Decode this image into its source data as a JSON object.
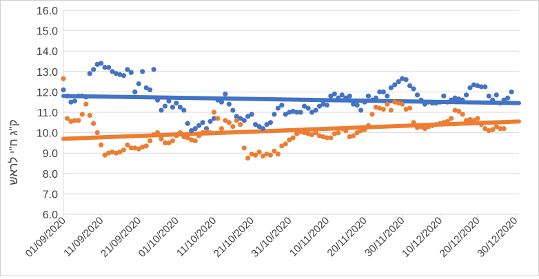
{
  "chart_data": {
    "type": "scatter",
    "title": "",
    "xlabel": "",
    "ylabel": "ק\"ג ח\"י לראש",
    "ylim": [
      6.0,
      16.0
    ],
    "y_ticks": [
      "16.0",
      "15.0",
      "14.0",
      "13.0",
      "12.0",
      "11.0",
      "10.0",
      "9.0",
      "8.0",
      "7.0",
      "6.0"
    ],
    "x_ticks": [
      "01/09/2020",
      "11/09/2020",
      "21/09/2020",
      "01/10/2020",
      "11/10/2020",
      "21/10/2020",
      "31/10/2020",
      "10/11/2020",
      "20/11/2020",
      "30/11/2020",
      "10/12/2020",
      "20/12/2020",
      "30/12/2020"
    ],
    "xlim": [
      "2020-09-01",
      "2020-12-31"
    ],
    "grid": "horizontal",
    "legend": "none",
    "colors": {
      "blue": "#4472C4",
      "orange": "#ED7D31"
    },
    "series": [
      {
        "color": "#4472C4",
        "trendline": {
          "x": [
            "2020-09-01",
            "2020-12-31"
          ],
          "y": [
            11.8,
            11.45
          ]
        },
        "points": [
          [
            "2020-09-01",
            12.1
          ],
          [
            "2020-09-02",
            11.8
          ],
          [
            "2020-09-03",
            11.5
          ],
          [
            "2020-09-04",
            11.55
          ],
          [
            "2020-09-05",
            11.8
          ],
          [
            "2020-09-06",
            11.8
          ],
          [
            "2020-09-07",
            11.75
          ],
          [
            "2020-09-08",
            12.9
          ],
          [
            "2020-09-09",
            13.1
          ],
          [
            "2020-09-10",
            13.35
          ],
          [
            "2020-09-11",
            13.4
          ],
          [
            "2020-09-12",
            13.2
          ],
          [
            "2020-09-13",
            13.2
          ],
          [
            "2020-09-14",
            13.0
          ],
          [
            "2020-09-15",
            12.9
          ],
          [
            "2020-09-16",
            12.85
          ],
          [
            "2020-09-17",
            12.8
          ],
          [
            "2020-09-18",
            13.1
          ],
          [
            "2020-09-19",
            12.95
          ],
          [
            "2020-09-20",
            12.0
          ],
          [
            "2020-09-21",
            12.4
          ],
          [
            "2020-09-22",
            13.0
          ],
          [
            "2020-09-23",
            12.2
          ],
          [
            "2020-09-24",
            12.1
          ],
          [
            "2020-09-25",
            13.1
          ],
          [
            "2020-09-26",
            11.6
          ],
          [
            "2020-09-27",
            11.1
          ],
          [
            "2020-09-28",
            11.3
          ],
          [
            "2020-09-29",
            11.55
          ],
          [
            "2020-09-30",
            11.25
          ],
          [
            "2020-10-01",
            11.45
          ],
          [
            "2020-10-02",
            11.25
          ],
          [
            "2020-10-03",
            11.1
          ],
          [
            "2020-10-04",
            10.45
          ],
          [
            "2020-10-05",
            10.1
          ],
          [
            "2020-10-06",
            10.2
          ],
          [
            "2020-10-07",
            10.35
          ],
          [
            "2020-10-08",
            10.5
          ],
          [
            "2020-10-09",
            10.2
          ],
          [
            "2020-10-10",
            10.55
          ],
          [
            "2020-10-11",
            10.7
          ],
          [
            "2020-10-12",
            11.6
          ],
          [
            "2020-10-13",
            11.5
          ],
          [
            "2020-10-14",
            11.9
          ],
          [
            "2020-10-15",
            11.4
          ],
          [
            "2020-10-16",
            11.1
          ],
          [
            "2020-10-17",
            10.8
          ],
          [
            "2020-10-18",
            10.7
          ],
          [
            "2020-10-19",
            10.6
          ],
          [
            "2020-10-20",
            10.8
          ],
          [
            "2020-10-21",
            10.9
          ],
          [
            "2020-10-22",
            10.4
          ],
          [
            "2020-10-23",
            10.3
          ],
          [
            "2020-10-24",
            10.2
          ],
          [
            "2020-10-25",
            10.4
          ],
          [
            "2020-10-26",
            10.5
          ],
          [
            "2020-10-27",
            10.9
          ],
          [
            "2020-10-28",
            11.2
          ],
          [
            "2020-10-29",
            11.35
          ],
          [
            "2020-10-30",
            10.9
          ],
          [
            "2020-10-31",
            11.0
          ],
          [
            "2020-11-01",
            11.05
          ],
          [
            "2020-11-02",
            11.0
          ],
          [
            "2020-11-03",
            11.0
          ],
          [
            "2020-11-04",
            11.3
          ],
          [
            "2020-11-05",
            11.2
          ],
          [
            "2020-11-06",
            11.0
          ],
          [
            "2020-11-07",
            11.1
          ],
          [
            "2020-11-08",
            11.3
          ],
          [
            "2020-11-09",
            11.4
          ],
          [
            "2020-11-10",
            11.35
          ],
          [
            "2020-11-11",
            11.8
          ],
          [
            "2020-11-12",
            11.9
          ],
          [
            "2020-11-13",
            11.7
          ],
          [
            "2020-11-14",
            11.85
          ],
          [
            "2020-11-15",
            11.7
          ],
          [
            "2020-11-16",
            11.8
          ],
          [
            "2020-11-17",
            11.4
          ],
          [
            "2020-11-18",
            11.35
          ],
          [
            "2020-11-19",
            11.1
          ],
          [
            "2020-11-20",
            11.5
          ],
          [
            "2020-11-21",
            11.8
          ],
          [
            "2020-11-22",
            11.6
          ],
          [
            "2020-11-23",
            11.7
          ],
          [
            "2020-11-24",
            12.0
          ],
          [
            "2020-11-25",
            12.0
          ],
          [
            "2020-11-26",
            11.8
          ],
          [
            "2020-11-27",
            12.2
          ],
          [
            "2020-11-28",
            12.35
          ],
          [
            "2020-11-29",
            12.5
          ],
          [
            "2020-11-30",
            12.65
          ],
          [
            "2020-12-01",
            12.6
          ],
          [
            "2020-12-02",
            12.3
          ],
          [
            "2020-12-03",
            12.15
          ],
          [
            "2020-12-04",
            11.85
          ],
          [
            "2020-12-05",
            11.6
          ],
          [
            "2020-12-06",
            11.4
          ],
          [
            "2020-12-07",
            11.5
          ],
          [
            "2020-12-08",
            11.45
          ],
          [
            "2020-12-09",
            11.45
          ],
          [
            "2020-12-10",
            11.5
          ],
          [
            "2020-12-11",
            11.8
          ],
          [
            "2020-12-12",
            11.5
          ],
          [
            "2020-12-13",
            11.6
          ],
          [
            "2020-12-14",
            11.7
          ],
          [
            "2020-12-15",
            11.65
          ],
          [
            "2020-12-16",
            11.6
          ],
          [
            "2020-12-17",
            11.85
          ],
          [
            "2020-12-18",
            12.2
          ],
          [
            "2020-12-19",
            12.35
          ],
          [
            "2020-12-20",
            12.3
          ],
          [
            "2020-12-21",
            12.25
          ],
          [
            "2020-12-22",
            12.25
          ],
          [
            "2020-12-23",
            11.8
          ],
          [
            "2020-12-24",
            11.6
          ],
          [
            "2020-12-25",
            11.85
          ],
          [
            "2020-12-26",
            11.45
          ],
          [
            "2020-12-27",
            11.6
          ],
          [
            "2020-12-28",
            11.7
          ],
          [
            "2020-12-29",
            12.0
          ]
        ]
      },
      {
        "color": "#ED7D31",
        "trendline": {
          "x": [
            "2020-09-01",
            "2020-12-31"
          ],
          "y": [
            9.7,
            10.55
          ]
        },
        "points": [
          [
            "2020-09-01",
            12.65
          ],
          [
            "2020-09-02",
            10.7
          ],
          [
            "2020-09-03",
            10.55
          ],
          [
            "2020-09-04",
            10.6
          ],
          [
            "2020-09-05",
            10.6
          ],
          [
            "2020-09-06",
            10.9
          ],
          [
            "2020-09-07",
            11.4
          ],
          [
            "2020-09-08",
            10.85
          ],
          [
            "2020-09-09",
            10.45
          ],
          [
            "2020-09-10",
            10.0
          ],
          [
            "2020-09-11",
            9.4
          ],
          [
            "2020-09-12",
            8.9
          ],
          [
            "2020-09-13",
            9.0
          ],
          [
            "2020-09-14",
            9.05
          ],
          [
            "2020-09-15",
            9.0
          ],
          [
            "2020-09-16",
            9.05
          ],
          [
            "2020-09-17",
            9.15
          ],
          [
            "2020-09-18",
            9.4
          ],
          [
            "2020-09-19",
            9.25
          ],
          [
            "2020-09-20",
            9.25
          ],
          [
            "2020-09-21",
            9.2
          ],
          [
            "2020-09-22",
            9.3
          ],
          [
            "2020-09-23",
            9.35
          ],
          [
            "2020-09-24",
            9.6
          ],
          [
            "2020-09-25",
            9.9
          ],
          [
            "2020-09-26",
            10.0
          ],
          [
            "2020-09-27",
            9.7
          ],
          [
            "2020-09-28",
            9.5
          ],
          [
            "2020-09-29",
            9.5
          ],
          [
            "2020-09-30",
            9.6
          ],
          [
            "2020-10-01",
            9.85
          ],
          [
            "2020-10-02",
            10.0
          ],
          [
            "2020-10-03",
            9.8
          ],
          [
            "2020-10-04",
            9.75
          ],
          [
            "2020-10-05",
            9.65
          ],
          [
            "2020-10-06",
            9.6
          ],
          [
            "2020-10-07",
            9.85
          ],
          [
            "2020-10-08",
            10.0
          ],
          [
            "2020-10-09",
            10.05
          ],
          [
            "2020-10-10",
            10.0
          ],
          [
            "2020-10-11",
            11.0
          ],
          [
            "2020-10-12",
            10.7
          ],
          [
            "2020-10-13",
            10.2
          ],
          [
            "2020-10-14",
            10.6
          ],
          [
            "2020-10-15",
            10.5
          ],
          [
            "2020-10-16",
            10.3
          ],
          [
            "2020-10-17",
            10.6
          ],
          [
            "2020-10-18",
            10.4
          ],
          [
            "2020-10-19",
            9.25
          ],
          [
            "2020-10-20",
            8.75
          ],
          [
            "2020-10-21",
            8.95
          ],
          [
            "2020-10-22",
            8.9
          ],
          [
            "2020-10-23",
            9.05
          ],
          [
            "2020-10-24",
            8.85
          ],
          [
            "2020-10-25",
            8.95
          ],
          [
            "2020-10-26",
            8.9
          ],
          [
            "2020-10-27",
            9.1
          ],
          [
            "2020-10-28",
            8.95
          ],
          [
            "2020-10-29",
            9.35
          ],
          [
            "2020-10-30",
            9.45
          ],
          [
            "2020-10-31",
            9.65
          ],
          [
            "2020-11-01",
            9.75
          ],
          [
            "2020-11-02",
            9.95
          ],
          [
            "2020-11-03",
            10.05
          ],
          [
            "2020-11-04",
            10.0
          ],
          [
            "2020-11-05",
            9.95
          ],
          [
            "2020-11-06",
            9.9
          ],
          [
            "2020-11-07",
            10.0
          ],
          [
            "2020-11-08",
            9.85
          ],
          [
            "2020-11-09",
            9.8
          ],
          [
            "2020-11-10",
            9.75
          ],
          [
            "2020-11-11",
            9.75
          ],
          [
            "2020-11-12",
            9.95
          ],
          [
            "2020-11-13",
            10.0
          ],
          [
            "2020-11-14",
            10.2
          ],
          [
            "2020-11-15",
            10.1
          ],
          [
            "2020-11-16",
            9.8
          ],
          [
            "2020-11-17",
            9.85
          ],
          [
            "2020-11-18",
            10.0
          ],
          [
            "2020-11-19",
            10.1
          ],
          [
            "2020-11-20",
            10.15
          ],
          [
            "2020-11-21",
            10.35
          ],
          [
            "2020-11-22",
            10.9
          ],
          [
            "2020-11-23",
            11.25
          ],
          [
            "2020-11-24",
            11.2
          ],
          [
            "2020-11-25",
            11.15
          ],
          [
            "2020-11-26",
            11.4
          ],
          [
            "2020-11-27",
            11.1
          ],
          [
            "2020-11-28",
            11.5
          ],
          [
            "2020-11-29",
            11.45
          ],
          [
            "2020-11-30",
            11.4
          ],
          [
            "2020-12-01",
            11.15
          ],
          [
            "2020-12-02",
            11.2
          ],
          [
            "2020-12-03",
            10.5
          ],
          [
            "2020-12-04",
            10.25
          ],
          [
            "2020-12-05",
            10.3
          ],
          [
            "2020-12-06",
            10.2
          ],
          [
            "2020-12-07",
            10.3
          ],
          [
            "2020-12-08",
            10.35
          ],
          [
            "2020-12-09",
            10.4
          ],
          [
            "2020-12-10",
            10.45
          ],
          [
            "2020-12-11",
            10.5
          ],
          [
            "2020-12-12",
            10.55
          ],
          [
            "2020-12-13",
            10.7
          ],
          [
            "2020-12-14",
            11.1
          ],
          [
            "2020-12-15",
            11.05
          ],
          [
            "2020-12-16",
            10.9
          ],
          [
            "2020-12-17",
            10.6
          ],
          [
            "2020-12-18",
            10.65
          ],
          [
            "2020-12-19",
            10.6
          ],
          [
            "2020-12-20",
            10.7
          ],
          [
            "2020-12-21",
            10.4
          ],
          [
            "2020-12-22",
            10.2
          ],
          [
            "2020-12-23",
            10.1
          ],
          [
            "2020-12-24",
            10.15
          ],
          [
            "2020-12-25",
            10.3
          ],
          [
            "2020-12-26",
            10.2
          ],
          [
            "2020-12-27",
            10.2
          ]
        ]
      }
    ]
  }
}
